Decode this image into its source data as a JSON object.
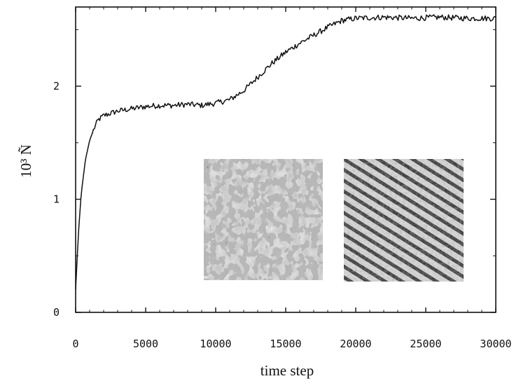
{
  "chart_data": {
    "type": "line",
    "title": "",
    "xlabel": "time step",
    "ylabel": "10³ Ñ",
    "xlim": [
      0,
      30000
    ],
    "ylim": [
      0,
      2.7
    ],
    "xticks": [
      0,
      5000,
      10000,
      15000,
      20000,
      25000,
      30000
    ],
    "xtick_labels": [
      "0",
      "5000",
      "10000",
      "15000",
      "20000",
      "25000",
      "30000"
    ],
    "yticks": [
      0,
      1,
      2
    ],
    "ytick_labels": [
      "0",
      "1",
      "2"
    ],
    "grid": false,
    "legend": "none",
    "series": [
      {
        "x": [
          0,
          200,
          400,
          700,
          1000,
          1300,
          1600,
          2000,
          2500,
          3000,
          4000,
          5000,
          6000,
          7000,
          8000,
          9000,
          10000,
          11000,
          12000,
          13000,
          14000,
          15000,
          16000,
          17000,
          18000,
          19000,
          20000,
          22000,
          24000,
          26000,
          28000,
          30000
        ],
        "y": [
          0.2,
          0.7,
          1.05,
          1.35,
          1.52,
          1.62,
          1.7,
          1.74,
          1.76,
          1.78,
          1.8,
          1.82,
          1.83,
          1.83,
          1.84,
          1.83,
          1.85,
          1.88,
          1.96,
          2.08,
          2.2,
          2.3,
          2.38,
          2.45,
          2.52,
          2.58,
          2.6,
          2.61,
          2.6,
          2.61,
          2.6,
          2.6
        ]
      }
    ],
    "insets": [
      {
        "description": "disordered micrograph pattern"
      },
      {
        "description": "striped micrograph pattern"
      }
    ]
  }
}
